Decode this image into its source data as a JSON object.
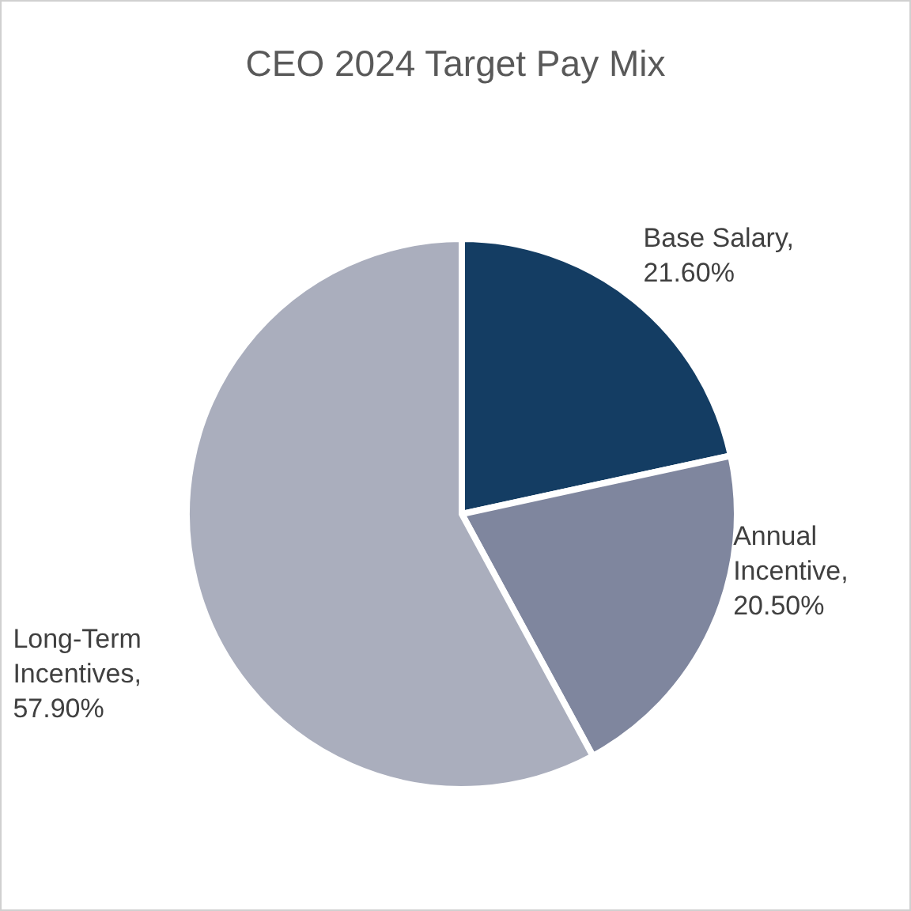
{
  "chart_data": {
    "type": "pie",
    "title": "CEO 2024 Target Pay Mix",
    "categories": [
      "Base Salary",
      "Annual Incentive",
      "Long-Term Incentives"
    ],
    "values": [
      21.6,
      20.5,
      57.9
    ],
    "value_labels": [
      ", 21.60%",
      ", 20.50%",
      ", 57.90%"
    ],
    "colors": [
      "#143d63",
      "#7f869e",
      "#aaaebd"
    ],
    "legend": false
  }
}
